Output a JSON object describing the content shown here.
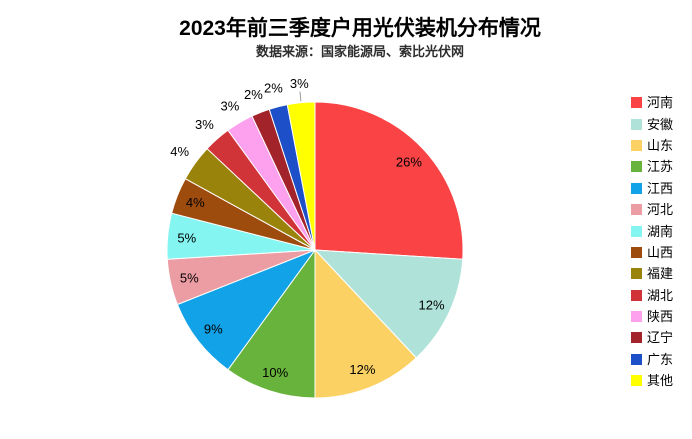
{
  "chart_data": {
    "type": "pie",
    "title": "2023年前三季度户用光伏装机分布情况",
    "subtitle": "数据来源：国家能源局、索比光伏网",
    "unit": "%",
    "legend_position": "right",
    "background_color": "#ffffff",
    "label_color": "#000000",
    "start_angle_deg": 0,
    "direction": "clockwise",
    "labels_outside_from_index": 8,
    "leader_line_series": "其他",
    "series": [
      {
        "name": "河南",
        "value": 26,
        "label": "26%",
        "color": "#F94345"
      },
      {
        "name": "安徽",
        "value": 12,
        "label": "12%",
        "color": "#AFE3D9"
      },
      {
        "name": "山东",
        "value": 12,
        "label": "12%",
        "color": "#FBD164"
      },
      {
        "name": "江苏",
        "value": 10,
        "label": "10%",
        "color": "#68B33C"
      },
      {
        "name": "江西",
        "value": 9,
        "label": "9%",
        "color": "#12A2E7"
      },
      {
        "name": "河北",
        "value": 5,
        "label": "5%",
        "color": "#EC9DA4"
      },
      {
        "name": "湖南",
        "value": 5,
        "label": "5%",
        "color": "#84F5F1"
      },
      {
        "name": "山西",
        "value": 4,
        "label": "4%",
        "color": "#9E4C0D"
      },
      {
        "name": "福建",
        "value": 4,
        "label": "4%",
        "color": "#9A830B"
      },
      {
        "name": "湖北",
        "value": 3,
        "label": "3%",
        "color": "#D03338"
      },
      {
        "name": "陕西",
        "value": 3,
        "label": "3%",
        "color": "#FDA1EE"
      },
      {
        "name": "辽宁",
        "value": 2,
        "label": "2%",
        "color": "#A2232A"
      },
      {
        "name": "广东",
        "value": 2,
        "label": "2%",
        "color": "#1D50C8"
      },
      {
        "name": "其他",
        "value": 3,
        "label": "3%",
        "color": "#FFFF00"
      }
    ]
  }
}
